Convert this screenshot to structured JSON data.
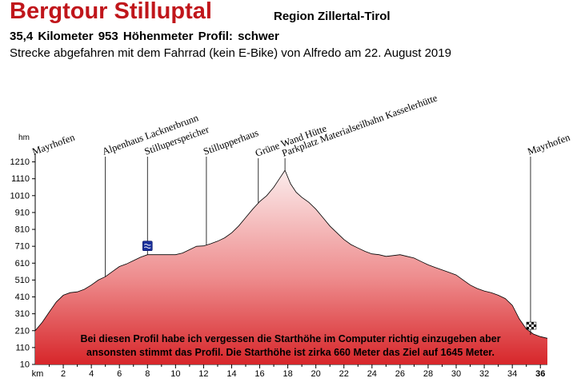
{
  "header": {
    "title": "Bergtour Stilluptal",
    "region": "Region Zillertal-Tirol",
    "stats": "35,4 Kilometer  953 Höhenmeter  Profil: schwer",
    "subtitle": "Strecke abgefahren mit dem Fahrrad (kein E-Bike) von Alfredo am 22. August 2019"
  },
  "note": {
    "line1": "Bei diesen Profil habe ich vergessen die Starthöhe im Computer richtig einzugeben aber",
    "line2": "ansonsten stimmt das Profil. Die Starthöhe ist zirka 660 Meter das Ziel auf 1645 Meter."
  },
  "colors": {
    "title": "#c0161b",
    "fill_top": "#fbecec",
    "fill_bottom": "#d7262a",
    "outline": "#000000"
  },
  "icons": {
    "water": "water-icon",
    "finish": "checkered-flag-icon"
  },
  "chart_data": {
    "type": "area",
    "title": "",
    "xlabel": "km",
    "ylabel": "hm",
    "xlim": [
      0,
      36.5
    ],
    "ylim": [
      10,
      1260
    ],
    "xticks": [
      2,
      4,
      6,
      8,
      10,
      12,
      14,
      16,
      18,
      20,
      22,
      24,
      26,
      28,
      30,
      32,
      34,
      36
    ],
    "yticks": [
      10,
      110,
      210,
      310,
      410,
      510,
      610,
      710,
      810,
      910,
      1010,
      1110,
      1210
    ],
    "grid": false,
    "x": [
      0,
      0.5,
      1,
      1.5,
      2,
      2.5,
      3,
      3.5,
      4,
      4.5,
      5,
      5.5,
      6,
      6.5,
      7,
      7.5,
      8,
      8.5,
      9,
      9.5,
      10,
      10.5,
      11,
      11.5,
      12,
      12.5,
      13,
      13.5,
      14,
      14.5,
      15,
      15.5,
      16,
      16.5,
      17,
      17.4,
      17.8,
      18.2,
      18.6,
      19,
      19.5,
      20,
      20.5,
      21,
      21.5,
      22,
      22.5,
      23,
      23.5,
      24,
      24.5,
      25,
      25.5,
      26,
      26.5,
      27,
      27.5,
      28,
      28.5,
      29,
      29.5,
      30,
      30.5,
      31,
      31.5,
      32,
      32.5,
      33,
      33.5,
      34,
      34.5,
      35,
      35.5,
      36,
      36.5
    ],
    "y": [
      210,
      260,
      320,
      380,
      420,
      435,
      440,
      455,
      480,
      510,
      530,
      560,
      590,
      605,
      625,
      645,
      660,
      660,
      660,
      660,
      660,
      670,
      690,
      710,
      712,
      725,
      740,
      760,
      790,
      830,
      880,
      930,
      975,
      1010,
      1060,
      1110,
      1160,
      1080,
      1030,
      1000,
      970,
      930,
      880,
      830,
      790,
      750,
      720,
      700,
      680,
      665,
      660,
      650,
      655,
      660,
      650,
      640,
      620,
      600,
      585,
      570,
      555,
      540,
      510,
      480,
      460,
      445,
      435,
      420,
      400,
      360,
      280,
      220,
      190,
      175,
      165
    ],
    "annotations": [
      {
        "label": "Mayrhofen",
        "x": 0.0,
        "y": 210,
        "icon": ""
      },
      {
        "label": "Alpenhaus Lacknerbrunn",
        "x": 5.0,
        "y": 530,
        "icon": ""
      },
      {
        "label": "Stilluperspeicher",
        "x": 8.0,
        "y": 660,
        "icon": "water-icon"
      },
      {
        "label": "Stillupperhaus",
        "x": 12.2,
        "y": 718,
        "icon": ""
      },
      {
        "label": "Grüne Wand Hütte",
        "x": 15.9,
        "y": 965,
        "icon": ""
      },
      {
        "label": "Parkplatz Materialseilbahn Kasselerhütte",
        "x": 17.8,
        "y": 1160,
        "icon": ""
      },
      {
        "label": "Mayrhofen",
        "x": 35.3,
        "y": 185,
        "icon": "checkered-flag-icon"
      }
    ]
  }
}
